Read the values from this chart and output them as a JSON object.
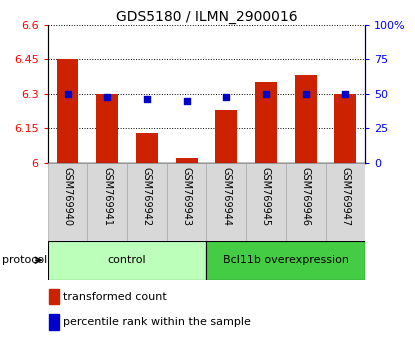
{
  "title": "GDS5180 / ILMN_2900016",
  "samples": [
    "GSM769940",
    "GSM769941",
    "GSM769942",
    "GSM769943",
    "GSM769944",
    "GSM769945",
    "GSM769946",
    "GSM769947"
  ],
  "transformed_count": [
    6.45,
    6.3,
    6.13,
    6.02,
    6.23,
    6.35,
    6.38,
    6.3
  ],
  "percentile_rank": [
    50,
    48,
    46,
    45,
    48,
    50,
    50,
    50
  ],
  "ylim_left": [
    6.0,
    6.6
  ],
  "ylim_right": [
    0,
    100
  ],
  "yticks_left": [
    6.0,
    6.15,
    6.3,
    6.45,
    6.6
  ],
  "yticks_right": [
    0,
    25,
    50,
    75,
    100
  ],
  "ytick_labels_left": [
    "6",
    "6.15",
    "6.3",
    "6.45",
    "6.6"
  ],
  "ytick_labels_right": [
    "0",
    "25",
    "50",
    "75",
    "100%"
  ],
  "bar_color": "#cc2200",
  "dot_color": "#0000cc",
  "groups": [
    {
      "label": "control",
      "indices": [
        0,
        1,
        2,
        3
      ],
      "color": "#bbffbb"
    },
    {
      "label": "Bcl11b overexpression",
      "indices": [
        4,
        5,
        6,
        7
      ],
      "color": "#44cc44"
    }
  ],
  "protocol_label": "protocol",
  "legend_bar_label": "transformed count",
  "legend_dot_label": "percentile rank within the sample",
  "bar_width": 0.55,
  "base_value": 6.0,
  "title_fontsize": 10,
  "tick_fontsize": 8,
  "sample_fontsize": 7,
  "group_fontsize": 8,
  "legend_fontsize": 8
}
